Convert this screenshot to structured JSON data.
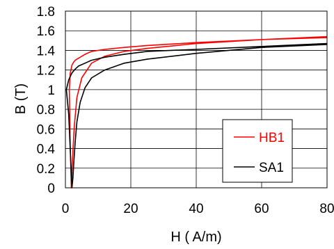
{
  "chart_data": {
    "type": "line",
    "xlabel": "H ( A/m)",
    "ylabel": "B (T)",
    "xlim": [
      0,
      80
    ],
    "ylim": [
      0,
      1.8
    ],
    "x_ticks": [
      "0",
      "20",
      "40",
      "60",
      "80"
    ],
    "y_ticks": [
      "0",
      "0.2",
      "0.4",
      "0.6",
      "0.8",
      "1",
      "1.2",
      "1.4",
      "1.6",
      "1.8"
    ],
    "grid": true,
    "legend_position": "bottom-right",
    "series": [
      {
        "name": "HB1",
        "color": "#ff0000",
        "x": [
          80,
          60,
          40,
          25,
          18,
          12,
          8,
          5,
          3.5,
          2.7,
          2.3,
          2.0,
          1.8,
          1.5,
          1.2,
          1.5,
          2.0,
          2.5,
          3.0,
          3.5,
          4.5,
          6,
          8,
          12,
          18,
          25,
          40,
          60,
          80
        ],
        "y": [
          1.53,
          1.51,
          1.47,
          1.42,
          1.39,
          1.34,
          1.27,
          1.12,
          0.92,
          0.62,
          0.37,
          0.15,
          0.0,
          0.4,
          1.0,
          1.17,
          1.25,
          1.28,
          1.3,
          1.31,
          1.33,
          1.36,
          1.39,
          1.41,
          1.43,
          1.45,
          1.48,
          1.51,
          1.54
        ]
      },
      {
        "name": "SA1",
        "color": "#000000",
        "x": [
          80,
          60,
          40,
          25,
          18,
          12,
          8,
          6,
          4.5,
          3.5,
          3.0,
          2.6,
          2.3,
          2.0,
          1.0,
          0.3,
          1.0,
          2.0,
          3.0,
          4.0,
          6,
          8,
          12,
          18,
          25,
          40,
          60,
          80
        ],
        "y": [
          1.46,
          1.43,
          1.37,
          1.31,
          1.27,
          1.2,
          1.12,
          1.02,
          0.87,
          0.67,
          0.47,
          0.27,
          0.1,
          0.0,
          0.75,
          1.0,
          1.1,
          1.17,
          1.21,
          1.24,
          1.27,
          1.3,
          1.33,
          1.36,
          1.39,
          1.41,
          1.44,
          1.47
        ]
      }
    ]
  }
}
